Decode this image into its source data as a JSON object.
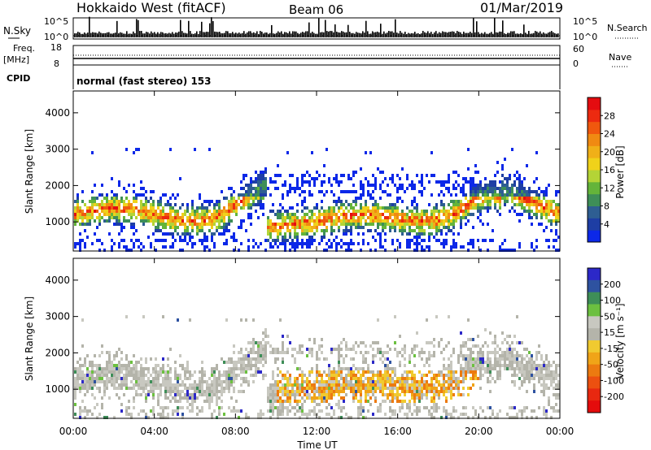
{
  "header": {
    "radar": "Hokkaido West (fitACF)",
    "beam": "Beam 06",
    "date": "01/Mar/2019"
  },
  "top_panel": {
    "nsky_label": "N.Sky",
    "nsky_ticks": [
      "10^5",
      "10^0"
    ],
    "nsearch_label": "N.Search",
    "freq_label_1": "Freq.",
    "freq_label_2": "[MHz]",
    "freq_ticks": [
      "18",
      "8"
    ],
    "nave_ticks": [
      "60",
      "0"
    ],
    "nave_label": "Nave",
    "cpid_label": "CPID",
    "cpid_text": "normal (fast stereo) 153"
  },
  "colors": {
    "power": [
      "#0c28e8",
      "#1e3ea4",
      "#2e5e92",
      "#3e8e58",
      "#64b43a",
      "#b4d436",
      "#f0d21a",
      "#f0b018",
      "#f08a12",
      "#f0580e",
      "#ec2a10",
      "#e40c10"
    ],
    "velocity": [
      "#2c28c8",
      "#2e52a0",
      "#3e8e58",
      "#6cc040",
      "#c8c8c0",
      "#b4b4aa",
      "#f0ca30",
      "#f0a418",
      "#ec7a10",
      "#ec5010",
      "#e82810",
      "#e40c0c"
    ]
  },
  "chart_data": [
    {
      "type": "heatmap",
      "name": "power",
      "ylabel": "Slant Range [km]",
      "xlabel": "Time UT",
      "xticks": [
        "00:00",
        "04:00",
        "08:00",
        "12:00",
        "16:00",
        "20:00",
        "00:00"
      ],
      "x_range_hours": [
        0,
        24
      ],
      "yticks": [
        1000,
        2000,
        3000,
        4000
      ],
      "ylim": [
        200,
        4600
      ],
      "colorbar_label": "Power [dB]",
      "colorbar_ticks": [
        "4",
        "8",
        "12",
        "16",
        "20",
        "24",
        "28"
      ],
      "colorbar_range": [
        0,
        32
      ]
    },
    {
      "type": "heatmap",
      "name": "velocity",
      "ylabel": "Slant Range [km]",
      "xlabel": "Time UT",
      "xticks": [
        "00:00",
        "04:00",
        "08:00",
        "12:00",
        "16:00",
        "20:00",
        "00:00"
      ],
      "x_range_hours": [
        0,
        24
      ],
      "yticks": [
        1000,
        2000,
        3000,
        4000
      ],
      "ylim": [
        200,
        4600
      ],
      "colorbar_label": "Velocity [m s⁻¹]",
      "colorbar_ticks": [
        "200",
        "100",
        "50",
        "15",
        "-15",
        "-50",
        "-100",
        "-200"
      ]
    }
  ]
}
